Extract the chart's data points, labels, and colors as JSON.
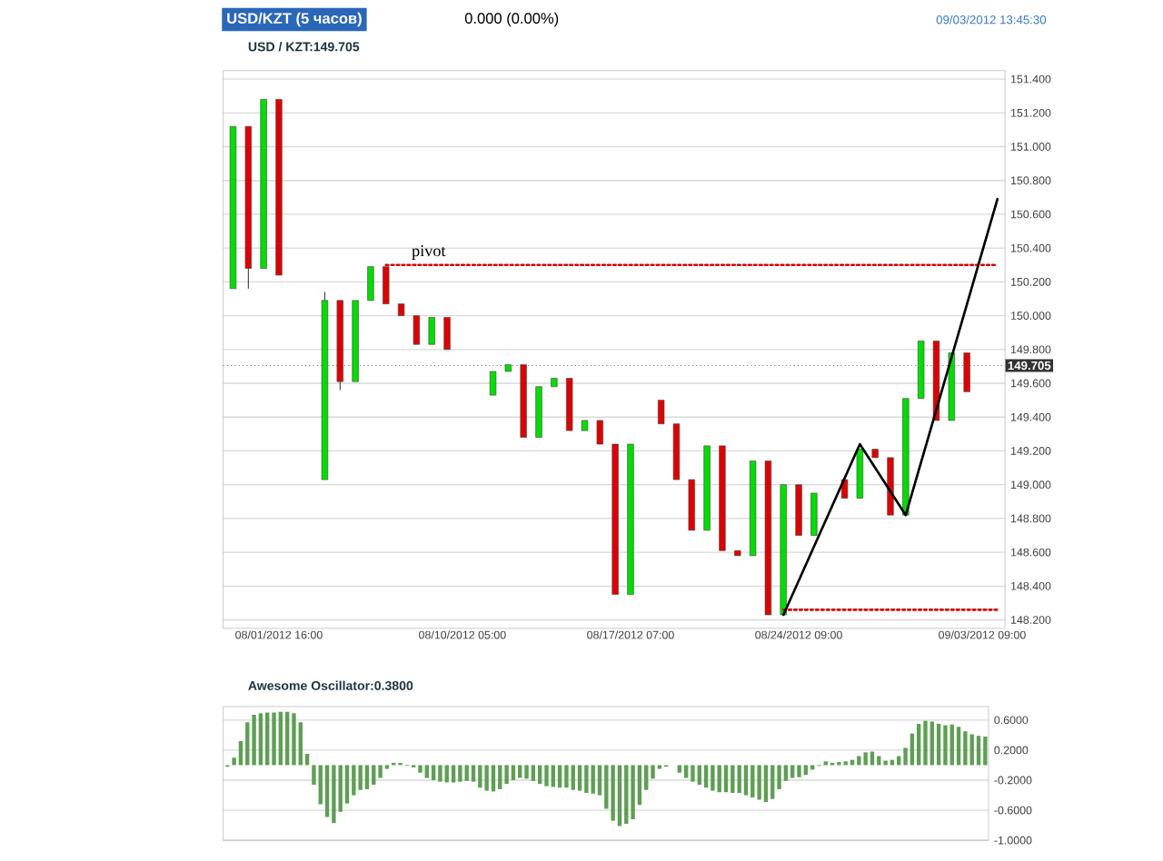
{
  "chart_data": [
    {
      "type": "candlestick",
      "title": "USD/KZT (5 часов)",
      "subtitle": "0.000 (0.00%)",
      "annotations": [
        "09/03/2012 13:45:30",
        "USD / KZT:149.705",
        {
          "text": "pivot",
          "y": 150.3
        }
      ],
      "categories": [
        null,
        null,
        null,
        "08/01/2012 16:00",
        null,
        null,
        null,
        null,
        null,
        null,
        null,
        null,
        null,
        null,
        null,
        "08/10/2012 05:00",
        null,
        null,
        null,
        null,
        null,
        null,
        null,
        null,
        null,
        null,
        "08/17/2012 07:00",
        null,
        null,
        null,
        null,
        null,
        null,
        null,
        null,
        null,
        null,
        "08/24/2012 09:00",
        null,
        null,
        null,
        null,
        null,
        null,
        null,
        null,
        null,
        null,
        null,
        "09/03/2012 09:00",
        null
      ],
      "ohlc": [
        [
          150.16,
          151.12,
          150.16,
          151.12
        ],
        [
          151.12,
          151.12,
          150.16,
          150.28
        ],
        [
          150.28,
          151.28,
          150.28,
          151.28
        ],
        [
          151.28,
          151.28,
          150.24,
          150.24
        ],
        null,
        null,
        [
          149.03,
          150.14,
          149.03,
          150.09
        ],
        [
          150.09,
          150.09,
          149.56,
          149.61
        ],
        [
          149.61,
          150.09,
          149.61,
          150.09
        ],
        [
          150.09,
          150.29,
          150.09,
          150.29
        ],
        [
          150.29,
          150.29,
          150.07,
          150.07
        ],
        [
          150.07,
          150.07,
          150.0,
          150.0
        ],
        [
          150.0,
          150.0,
          149.83,
          149.83
        ],
        [
          149.83,
          149.99,
          149.83,
          149.99
        ],
        [
          149.99,
          149.99,
          149.8,
          149.8
        ],
        null,
        null,
        [
          149.53,
          149.67,
          149.53,
          149.67
        ],
        [
          149.67,
          149.71,
          149.67,
          149.71
        ],
        [
          149.71,
          149.71,
          149.28,
          149.28
        ],
        [
          149.28,
          149.58,
          149.28,
          149.58
        ],
        [
          149.58,
          149.63,
          149.58,
          149.63
        ],
        [
          149.63,
          149.63,
          149.32,
          149.32
        ],
        [
          149.32,
          149.38,
          149.32,
          149.38
        ],
        [
          149.38,
          149.38,
          149.24,
          149.24
        ],
        [
          149.24,
          149.24,
          148.35,
          148.35
        ],
        [
          148.35,
          149.24,
          148.35,
          149.24
        ],
        null,
        [
          149.5,
          149.5,
          149.36,
          149.36
        ],
        [
          149.36,
          149.36,
          149.03,
          149.03
        ],
        [
          149.03,
          149.03,
          148.73,
          148.73
        ],
        [
          148.73,
          149.23,
          148.73,
          149.23
        ],
        [
          149.23,
          149.23,
          148.61,
          148.61
        ],
        [
          148.61,
          148.61,
          148.58,
          148.58
        ],
        [
          148.58,
          149.14,
          148.58,
          149.14
        ],
        [
          149.14,
          149.14,
          148.23,
          148.23
        ],
        [
          148.23,
          149.0,
          148.23,
          149.0
        ],
        [
          149.0,
          149.0,
          148.7,
          148.7
        ],
        [
          148.7,
          148.95,
          148.7,
          148.95
        ],
        null,
        [
          149.03,
          149.03,
          148.92,
          148.92
        ],
        [
          148.92,
          149.21,
          148.92,
          149.21
        ],
        [
          149.21,
          149.21,
          149.16,
          149.16
        ],
        [
          149.16,
          149.16,
          148.82,
          148.82
        ],
        [
          148.82,
          149.51,
          148.82,
          149.51
        ],
        [
          149.51,
          149.85,
          149.51,
          149.85
        ],
        [
          149.85,
          149.85,
          149.38,
          149.38
        ],
        [
          149.38,
          149.78,
          149.38,
          149.78
        ],
        [
          149.78,
          149.78,
          149.55,
          149.55
        ],
        null,
        null
      ],
      "colors": [
        "#00dd00",
        "#dd0000",
        "#00dd00",
        "#dd0000",
        null,
        null,
        "#00dd00",
        "#dd0000",
        "#00dd00",
        "#00dd00",
        "#dd0000",
        "#dd0000",
        "#dd0000",
        "#00dd00",
        "#dd0000",
        null,
        null,
        "#00dd00",
        "#00dd00",
        "#dd0000",
        "#00dd00",
        "#00dd00",
        "#dd0000",
        "#00dd00",
        "#dd0000",
        "#dd0000",
        "#00dd00",
        null,
        "#dd0000",
        "#dd0000",
        "#dd0000",
        "#00dd00",
        "#dd0000",
        "#dd0000",
        "#00dd00",
        "#dd0000",
        "#00dd00",
        "#dd0000",
        "#00dd00",
        null,
        "#dd0000",
        "#00dd00",
        "#dd0000",
        "#dd0000",
        "#00dd00",
        "#00dd00",
        "#dd0000",
        "#00dd00",
        "#dd0000",
        null,
        null
      ],
      "ylim": [
        148.15,
        151.45
      ],
      "yticks": [
        {
          "value": 148.2,
          "label": "148.200"
        },
        {
          "value": 148.4,
          "label": "148.400"
        },
        {
          "value": 148.6,
          "label": "148.600"
        },
        {
          "value": 148.8,
          "label": "148.800"
        },
        {
          "value": 149.0,
          "label": "149.000"
        },
        {
          "value": 149.2,
          "label": "149.200"
        },
        {
          "value": 149.4,
          "label": "149.400"
        },
        {
          "value": 149.6,
          "label": "149.600"
        },
        {
          "value": 149.8,
          "label": "149.800"
        },
        {
          "value": 150.0,
          "label": "150.000"
        },
        {
          "value": 150.2,
          "label": "150.200"
        },
        {
          "value": 150.4,
          "label": "150.400"
        },
        {
          "value": 150.6,
          "label": "150.600"
        },
        {
          "value": 150.8,
          "label": "150.800"
        },
        {
          "value": 151.0,
          "label": "151.000"
        },
        {
          "value": 151.2,
          "label": "151.200"
        },
        {
          "value": 151.4,
          "label": "151.400"
        }
      ],
      "grid": "y",
      "ref_lines": [
        {
          "axis": "y",
          "value": 149.705,
          "label": "149.705",
          "color": "#666666",
          "line_style": "dotted"
        }
      ],
      "series": [
        {
          "type": "line",
          "color": "#cc0000",
          "line_style": "dotted",
          "values": [
            null,
            null,
            null,
            null,
            null,
            null,
            null,
            null,
            null,
            null,
            150.3,
            150.3,
            150.3,
            150.3,
            150.3,
            150.3,
            150.3,
            150.3,
            150.3,
            150.3,
            150.3,
            150.3,
            150.3,
            150.3,
            150.3,
            150.3,
            150.3,
            150.3,
            150.3,
            150.3,
            150.3,
            150.3,
            150.3,
            150.3,
            150.3,
            150.3,
            150.3,
            150.3,
            150.3,
            150.3,
            150.3,
            150.3,
            150.3,
            150.3,
            150.3,
            150.3,
            150.3,
            150.3,
            150.3,
            150.3,
            150.3
          ]
        },
        {
          "type": "line",
          "color": "#cc0000",
          "line_style": "dotted",
          "values": [
            null,
            null,
            null,
            null,
            null,
            null,
            null,
            null,
            null,
            null,
            null,
            null,
            null,
            null,
            null,
            null,
            null,
            null,
            null,
            null,
            null,
            null,
            null,
            null,
            null,
            null,
            null,
            null,
            null,
            null,
            null,
            null,
            null,
            null,
            null,
            null,
            148.26,
            148.26,
            148.26,
            148.26,
            148.26,
            148.26,
            148.26,
            148.26,
            148.26,
            148.26,
            148.26,
            148.26,
            148.26,
            148.26,
            148.26
          ]
        },
        {
          "type": "line",
          "color": "#000000",
          "line_style": "solid",
          "values": [
            null,
            null,
            null,
            null,
            null,
            null,
            null,
            null,
            null,
            null,
            null,
            null,
            null,
            null,
            null,
            null,
            null,
            null,
            null,
            null,
            null,
            null,
            null,
            null,
            null,
            null,
            null,
            null,
            null,
            null,
            null,
            null,
            null,
            null,
            null,
            null,
            148.23,
            null,
            null,
            null,
            null,
            149.24,
            null,
            null,
            148.82,
            null,
            null,
            null,
            null,
            null,
            150.69
          ]
        }
      ]
    },
    {
      "type": "bar",
      "title": "Awesome Oscillator:0.3800",
      "color": "#5f9e55",
      "categories": [
        null,
        null,
        null,
        null,
        null,
        null,
        null,
        null,
        null,
        null,
        null,
        null,
        null,
        null,
        null,
        null,
        null,
        null,
        null,
        null,
        null,
        null,
        null,
        null,
        null,
        null,
        null,
        null,
        null,
        null,
        null,
        null,
        null,
        null,
        null,
        null,
        null,
        null,
        null,
        null,
        null,
        null,
        null,
        null,
        null,
        null,
        null,
        null,
        null,
        null,
        null,
        null,
        null,
        null,
        null,
        null,
        null,
        null,
        null,
        null,
        null,
        null,
        null,
        null,
        null,
        null,
        null,
        null,
        null,
        null,
        null,
        null,
        null,
        null,
        null,
        null,
        null,
        null,
        null,
        null,
        null,
        null,
        null,
        null,
        null,
        null,
        null,
        null,
        null,
        null,
        null,
        null,
        null,
        null,
        null,
        null,
        null,
        null,
        null,
        null,
        null,
        null,
        null,
        null,
        null,
        null,
        null,
        null,
        null,
        null,
        null,
        null,
        null,
        null,
        null
      ],
      "values": [
        -0.02,
        0.1,
        0.32,
        0.57,
        0.67,
        0.69,
        0.7,
        0.7,
        0.71,
        0.71,
        0.69,
        0.57,
        0.15,
        -0.26,
        -0.52,
        -0.69,
        -0.77,
        -0.62,
        -0.51,
        -0.4,
        -0.33,
        -0.32,
        -0.26,
        -0.17,
        -0.05,
        0.03,
        0.03,
        -0.01,
        -0.03,
        -0.1,
        -0.17,
        -0.2,
        -0.22,
        -0.23,
        -0.23,
        -0.22,
        -0.21,
        -0.22,
        -0.3,
        -0.34,
        -0.35,
        -0.32,
        -0.25,
        -0.2,
        -0.17,
        -0.18,
        -0.21,
        -0.25,
        -0.28,
        -0.29,
        -0.3,
        -0.3,
        -0.33,
        -0.34,
        -0.37,
        -0.38,
        -0.4,
        -0.58,
        -0.74,
        -0.81,
        -0.78,
        -0.72,
        -0.53,
        -0.33,
        -0.18,
        -0.05,
        -0.02,
        0,
        -0.1,
        -0.17,
        -0.22,
        -0.26,
        -0.3,
        -0.34,
        -0.36,
        -0.36,
        -0.37,
        -0.37,
        -0.4,
        -0.43,
        -0.46,
        -0.49,
        -0.45,
        -0.32,
        -0.21,
        -0.17,
        -0.16,
        -0.13,
        -0.06,
        -0.01,
        0.05,
        0.03,
        0.04,
        0.05,
        0.07,
        0.12,
        0.17,
        0.18,
        0.12,
        0.06,
        0.07,
        0.12,
        0.23,
        0.42,
        0.55,
        0.59,
        0.58,
        0.55,
        0.53,
        0.54,
        0.51,
        0.45,
        0.41,
        0.39,
        0.38
      ],
      "ylim": [
        -1.0,
        0.78
      ],
      "yticks": [
        {
          "value": -1.0,
          "label": "-1.0000"
        },
        {
          "value": -0.6,
          "label": "-0.6000"
        },
        {
          "value": -0.2,
          "label": "-0.2000"
        },
        {
          "value": 0.2,
          "label": "0.2000"
        },
        {
          "value": 0.6,
          "label": "0.6000"
        }
      ],
      "grid": "y"
    }
  ]
}
